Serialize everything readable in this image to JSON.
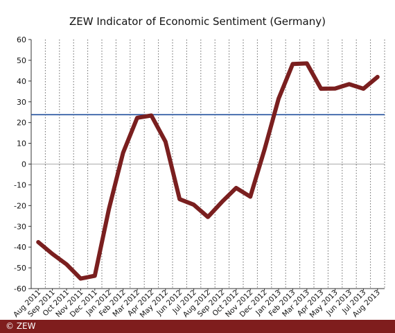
{
  "title": "ZEW Indicator of Economic Sentiment (Germany)",
  "copyright": "© ZEW",
  "colors": {
    "line": "#7a1f1f",
    "reference": "#1f4e9c",
    "grid": "#666666",
    "zero": "#aaaaaa",
    "footer": "#7f1d1d"
  },
  "chart_data": {
    "type": "line",
    "title": "ZEW Indicator of Economic Sentiment (Germany)",
    "xlabel": "",
    "ylabel": "",
    "categories": [
      "Aug 2011",
      "Sep 2011",
      "Oct 2011",
      "Nov 2011",
      "Dec 2011",
      "Jan 2012",
      "Feb 2012",
      "Mar 2012",
      "Apr 2012",
      "May 2012",
      "Jun 2012",
      "Jul 2012",
      "Aug 2012",
      "Sep 2012",
      "Oct 2012",
      "Nov 2012",
      "Dec 2012",
      "Jan 2013",
      "Feb 2013",
      "Mar 2013",
      "Apr 2013",
      "May 2013",
      "Jun 2013",
      "Jul 2013",
      "Aug 2013"
    ],
    "series": [
      {
        "values": [
          -37.6,
          -43.3,
          -48.3,
          -55.2,
          -53.8,
          -21.6,
          5.4,
          22.3,
          23.4,
          10.8,
          -16.9,
          -19.6,
          -25.5,
          -18.2,
          -11.5,
          -15.7,
          6.9,
          31.5,
          48.2,
          48.5,
          36.3,
          36.4,
          38.5,
          36.3,
          42.0
        ]
      }
    ],
    "reference_line": 23.8,
    "ylim": [
      -60,
      60
    ],
    "yticks": [
      60,
      50,
      40,
      30,
      20,
      10,
      0,
      -10,
      -20,
      -30,
      -40,
      -50,
      -60
    ],
    "grid": "vertical dotted lines at each month; solid zero line",
    "legend": "none"
  }
}
